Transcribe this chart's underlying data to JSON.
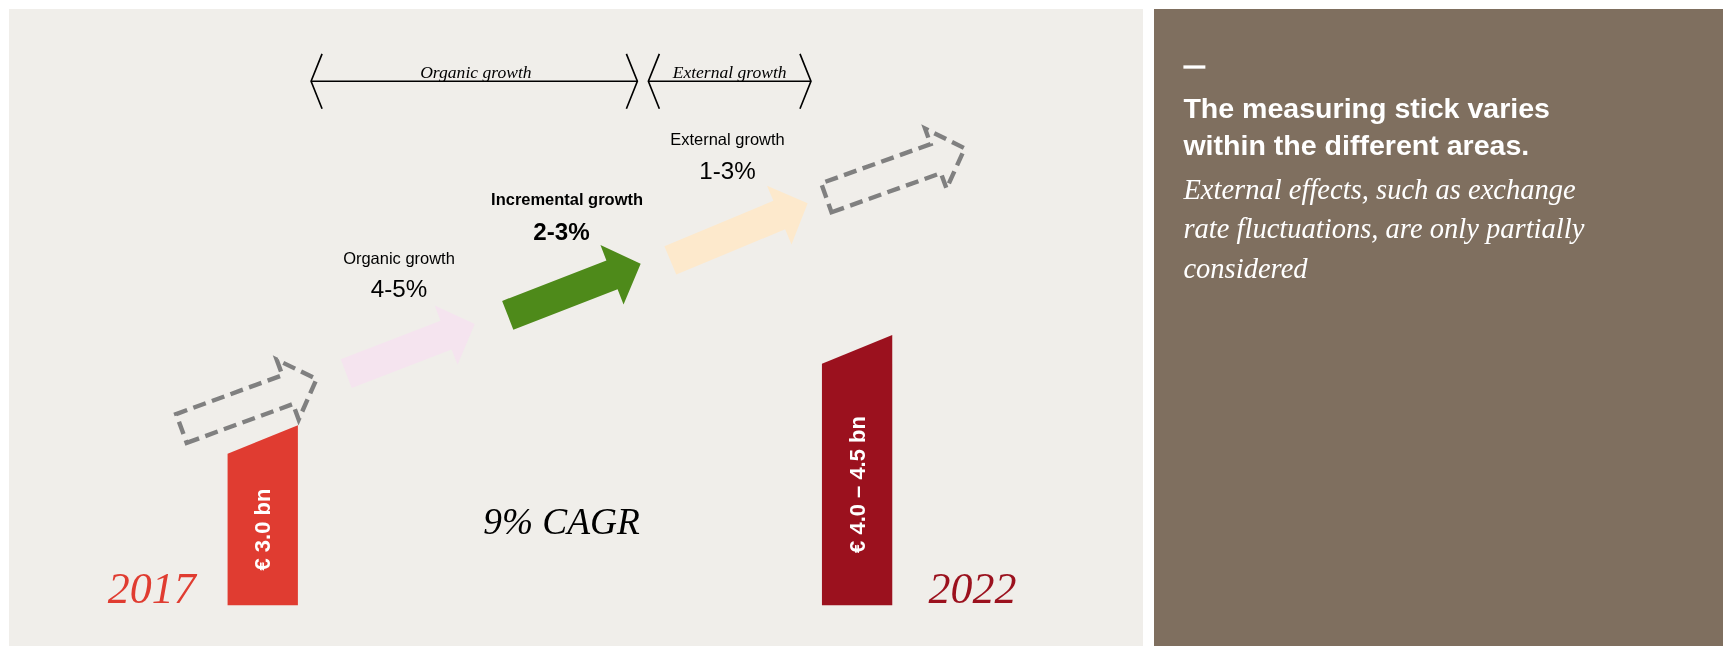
{
  "chart_data": {
    "type": "bar",
    "title": "The measuring stick varies within the different areas.",
    "subtitle": "External effects, such as exchange rate fluctuations, are only partially considered",
    "categories": [
      "2017",
      "2022"
    ],
    "values": [
      3.0,
      4.5
    ],
    "colors": [
      "#e03c31",
      "#9b111e"
    ],
    "value_labels": [
      "€ 3.0 bn",
      "€ 4.0 – 4.5 bn"
    ],
    "annotations": [
      "Organic growth",
      "External growth",
      "Organic growth",
      "4-5%",
      "Incremental growth",
      "2-3%",
      "External growth",
      "1-3%",
      "9% CAGR"
    ]
  }
}
